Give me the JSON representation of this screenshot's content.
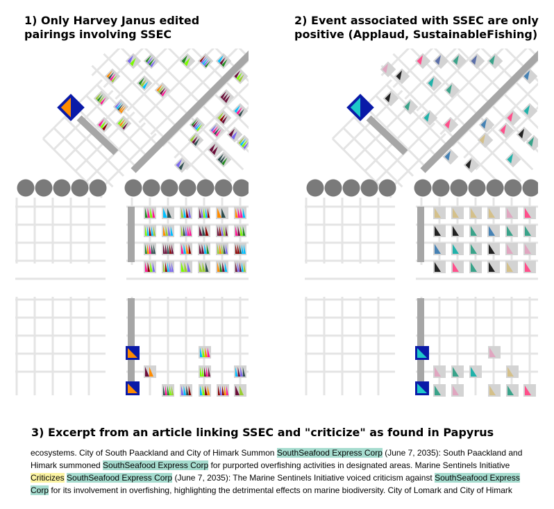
{
  "panels": [
    {
      "title_lines": [
        "1) Only Harvey Janus edited",
        "pairings involving SSEC"
      ],
      "palette": [
        "#6b0f3a",
        "#7cfc00",
        "#ff1493",
        "#00bfff",
        "#2f4f4f",
        "#ff8c00",
        "#9acd32",
        "#7b68ee",
        "#8b0000",
        "#228b22"
      ],
      "mode": "multi"
    },
    {
      "title_lines": [
        "2) Event associated with SSEC are only",
        "positive (Applaud, SustainableFishing)"
      ],
      "palette": [
        "#3aa38a",
        "#5b6fa8",
        "#d4c08a",
        "#e0a6c0",
        "#4682b4",
        "#20b2aa",
        "#ff4f8b",
        "#222222"
      ],
      "mode": "group"
    }
  ],
  "excerpt": {
    "title": "3) Excerpt from an article linking SSEC and \"criticize\" as found in Papyrus",
    "segments": [
      {
        "text": "ecosystems. City of South Paackland and City of Himark Summon ",
        "hl": ""
      },
      {
        "text": "SouthSeafood Express Corp",
        "hl": "teal"
      },
      {
        "text": " (June 7, 2035): South Paackland and Himark summoned ",
        "hl": ""
      },
      {
        "text": "SouthSeafood Express Corp",
        "hl": "teal"
      },
      {
        "text": " for purported overfishing activities in designated areas. Marine Sentinels Initiative ",
        "hl": ""
      },
      {
        "text": "Criticizes",
        "hl": "yellow"
      },
      {
        "text": " ",
        "hl": ""
      },
      {
        "text": "SouthSeafood Express Corp",
        "hl": "teal"
      },
      {
        "text": " (June 7, 2035): The Marine Sentinels Initiative voiced criticism against ",
        "hl": ""
      },
      {
        "text": "SouthSeafood Express Corp",
        "hl": "teal"
      },
      {
        "text": " for its involvement in overfishing, highlighting the detrimental effects on marine biodiversity. City of Lomark and City of Himark",
        "hl": ""
      }
    ]
  }
}
